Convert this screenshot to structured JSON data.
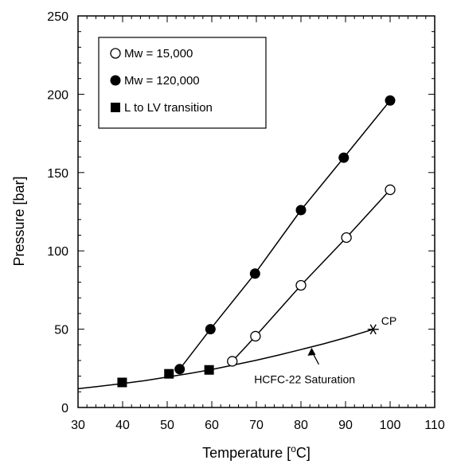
{
  "chart_data": {
    "type": "scatter",
    "title": "",
    "xlabel": {
      "text": "Temperature [",
      "sup": "o",
      "suffix": "C]"
    },
    "ylabel": "Pressure [bar]",
    "xlim": [
      30,
      110
    ],
    "ylim": [
      0,
      250
    ],
    "xticks": [
      30,
      40,
      50,
      60,
      70,
      80,
      90,
      100,
      110
    ],
    "yticks": [
      0,
      50,
      100,
      150,
      200,
      250
    ],
    "grid": false,
    "legend_position": "top-left",
    "series": [
      {
        "name": "Mw = 15,000",
        "marker": "open-circle",
        "connected": true,
        "points": [
          [
            64.6,
            29.5
          ],
          [
            69.8,
            45.5
          ],
          [
            80.0,
            78.0
          ],
          [
            90.2,
            108.5
          ],
          [
            100.0,
            139.0
          ]
        ]
      },
      {
        "name": "Mw = 120,000",
        "marker": "filled-circle",
        "connected": true,
        "points": [
          [
            52.8,
            24.5
          ],
          [
            59.7,
            50.0
          ],
          [
            69.7,
            85.5
          ],
          [
            80.0,
            126.0
          ],
          [
            89.6,
            159.5
          ],
          [
            100.0,
            196.0
          ]
        ]
      },
      {
        "name": "L to LV transition",
        "marker": "filled-square",
        "connected": false,
        "points": [
          [
            39.9,
            16.0
          ],
          [
            50.4,
            21.5
          ],
          [
            59.4,
            24.0
          ]
        ]
      }
    ],
    "saturation_curve": {
      "label": "HCFC-22 Saturation",
      "points": [
        [
          30,
          12.0
        ],
        [
          35,
          13.6
        ],
        [
          40,
          15.3
        ],
        [
          45,
          17.2
        ],
        [
          50,
          19.4
        ],
        [
          55,
          21.7
        ],
        [
          60,
          24.3
        ],
        [
          65,
          27.2
        ],
        [
          70,
          30.2
        ],
        [
          75,
          33.5
        ],
        [
          80,
          37.0
        ],
        [
          85,
          40.6
        ],
        [
          90,
          44.5
        ],
        [
          96.2,
          49.9
        ]
      ]
    },
    "critical_point": {
      "label": "CP",
      "x": 96.2,
      "y": 49.9
    }
  }
}
